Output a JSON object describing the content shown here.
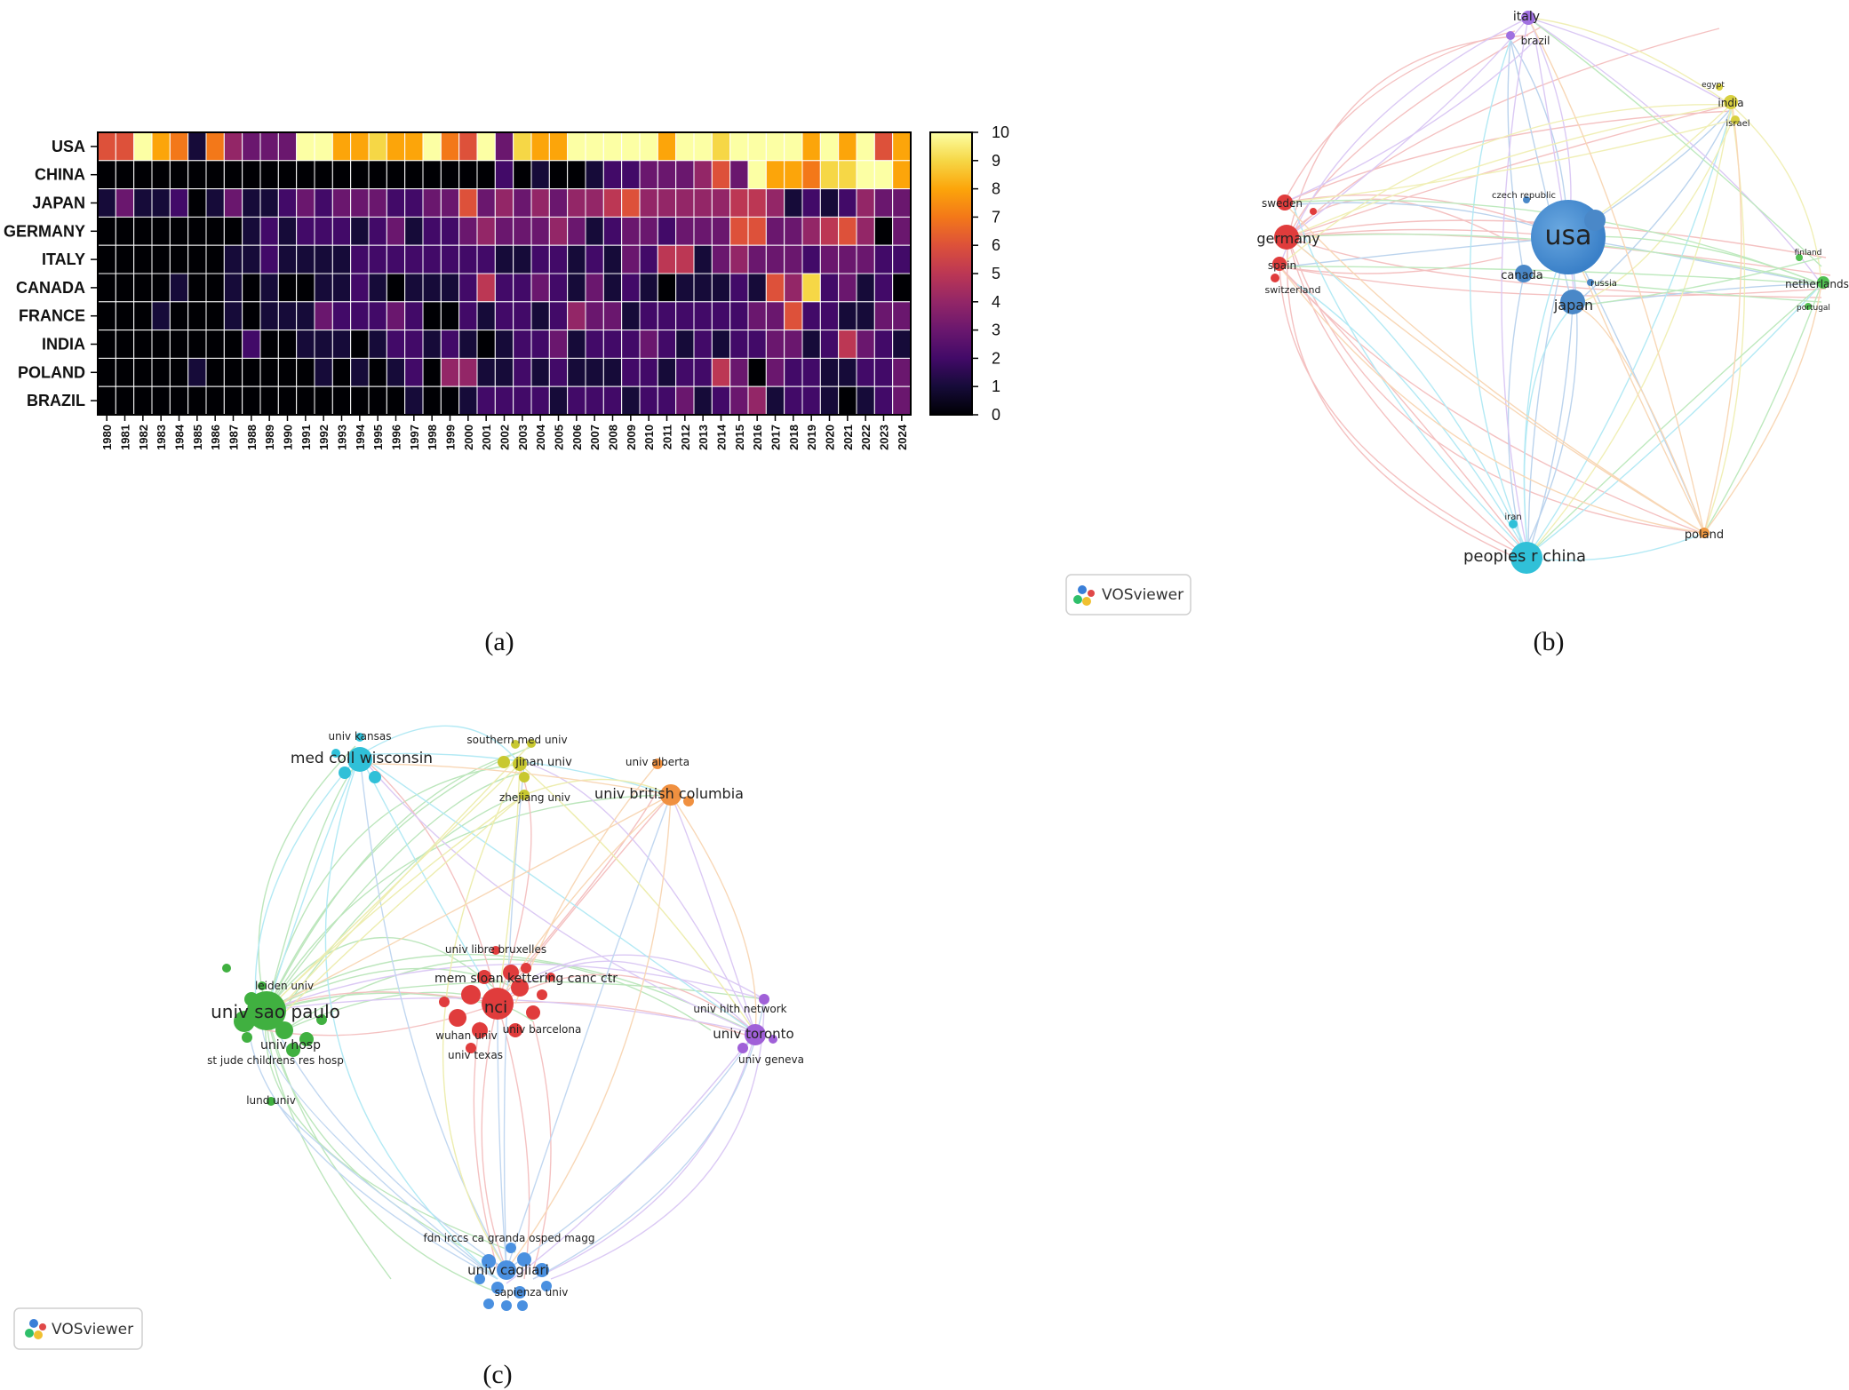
{
  "captions": {
    "a": "(a)",
    "b": "(b)",
    "c": "(c)"
  },
  "vosviewer_badge": "VOSviewer",
  "chart_data": [
    {
      "type": "heatmap",
      "panel": "a",
      "rows": [
        "USA",
        "CHINA",
        "JAPAN",
        "GERMANY",
        "ITALY",
        "CANADA",
        "FRANCE",
        "INDIA",
        "POLAND",
        "BRAZIL"
      ],
      "columns": [
        "1980",
        "1981",
        "1982",
        "1983",
        "1984",
        "1985",
        "1986",
        "1987",
        "1988",
        "1989",
        "1990",
        "1991",
        "1992",
        "1993",
        "1994",
        "1995",
        "1996",
        "1997",
        "1998",
        "1999",
        "2000",
        "2001",
        "2002",
        "2003",
        "2004",
        "2005",
        "2006",
        "2007",
        "2008",
        "2009",
        "2010",
        "2011",
        "2012",
        "2013",
        "2014",
        "2015",
        "2016",
        "2017",
        "2018",
        "2019",
        "2020",
        "2021",
        "2022",
        "2023",
        "2024"
      ],
      "values": [
        [
          6,
          6,
          10,
          8,
          7,
          1,
          7,
          4,
          3,
          3,
          3,
          10,
          10,
          8,
          8,
          9,
          8,
          8,
          10,
          7,
          6,
          10,
          3,
          9,
          8,
          8,
          10,
          10,
          10,
          10,
          10,
          8,
          10,
          10,
          9,
          10,
          10,
          10,
          10,
          8,
          10,
          8,
          10,
          6,
          8
        ],
        [
          0,
          0,
          0,
          0,
          0,
          0,
          0,
          0,
          0,
          0,
          0,
          0,
          0,
          0,
          0,
          0,
          0,
          0,
          0,
          0,
          0,
          0,
          2,
          0,
          1,
          0,
          0,
          1,
          2,
          2,
          3,
          3,
          3,
          4,
          6,
          3,
          10,
          8,
          8,
          7,
          9,
          9,
          10,
          10,
          8
        ],
        [
          1,
          3,
          1,
          1,
          2,
          0,
          1,
          3,
          1,
          1,
          2,
          3,
          2,
          3,
          3,
          3,
          2,
          2,
          3,
          3,
          6,
          3,
          4,
          3,
          4,
          3,
          4,
          4,
          5,
          6,
          4,
          4,
          4,
          4,
          4,
          5,
          5,
          4,
          1,
          2,
          1,
          2,
          4,
          3,
          3
        ],
        [
          0,
          0,
          0,
          0,
          0,
          0,
          0,
          0,
          1,
          2,
          1,
          2,
          2,
          2,
          1,
          2,
          3,
          1,
          2,
          2,
          3,
          4,
          3,
          3,
          3,
          4,
          3,
          1,
          2,
          3,
          3,
          2,
          3,
          3,
          3,
          6,
          6,
          3,
          3,
          4,
          5,
          6,
          4,
          0,
          3
        ],
        [
          0,
          0,
          0,
          0,
          0,
          0,
          0,
          1,
          1,
          2,
          1,
          1,
          1,
          1,
          2,
          2,
          2,
          2,
          2,
          2,
          2,
          2,
          1,
          1,
          2,
          2,
          1,
          2,
          1,
          3,
          2,
          5,
          5,
          1,
          3,
          4,
          3,
          3,
          3,
          2,
          3,
          3,
          3,
          2,
          2
        ],
        [
          0,
          0,
          0,
          0,
          1,
          0,
          0,
          1,
          0,
          1,
          0,
          0,
          1,
          1,
          2,
          1,
          0,
          1,
          1,
          1,
          2,
          5,
          2,
          2,
          3,
          2,
          1,
          3,
          1,
          2,
          1,
          0,
          1,
          1,
          1,
          2,
          1,
          6,
          4,
          9,
          2,
          3,
          1,
          2,
          0
        ],
        [
          0,
          0,
          0,
          1,
          0,
          0,
          0,
          1,
          0,
          1,
          1,
          1,
          3,
          2,
          2,
          2,
          3,
          2,
          0,
          0,
          2,
          1,
          2,
          2,
          1,
          2,
          4,
          3,
          3,
          1,
          2,
          2,
          2,
          2,
          2,
          2,
          3,
          3,
          6,
          2,
          2,
          1,
          1,
          3,
          3
        ],
        [
          0,
          0,
          0,
          0,
          0,
          0,
          0,
          0,
          2,
          0,
          0,
          1,
          1,
          1,
          0,
          1,
          2,
          2,
          1,
          2,
          1,
          0,
          1,
          2,
          2,
          3,
          1,
          2,
          2,
          2,
          3,
          2,
          1,
          2,
          1,
          2,
          2,
          3,
          3,
          1,
          2,
          5,
          3,
          2,
          1
        ],
        [
          0,
          0,
          0,
          0,
          0,
          1,
          0,
          0,
          0,
          0,
          0,
          0,
          1,
          0,
          1,
          0,
          1,
          2,
          0,
          4,
          4,
          1,
          1,
          2,
          1,
          2,
          1,
          1,
          1,
          2,
          2,
          1,
          2,
          2,
          5,
          3,
          0,
          3,
          2,
          2,
          1,
          1,
          2,
          2,
          3
        ],
        [
          0,
          0,
          0,
          0,
          0,
          0,
          0,
          0,
          0,
          0,
          0,
          0,
          0,
          0,
          0,
          0,
          0,
          1,
          0,
          0,
          1,
          2,
          2,
          2,
          2,
          1,
          2,
          2,
          2,
          1,
          2,
          2,
          3,
          1,
          2,
          3,
          4,
          1,
          2,
          2,
          1,
          0,
          1,
          2,
          3
        ]
      ],
      "colorbar": {
        "min": 0,
        "max": 10,
        "ticks": [
          0,
          1,
          2,
          3,
          4,
          5,
          6,
          7,
          8,
          9,
          10
        ],
        "colormap": "inferno"
      }
    },
    {
      "type": "network",
      "panel": "b",
      "nodes": [
        {
          "id": "usa",
          "label": "usa",
          "color": "#4a90d0",
          "size": "very large"
        },
        {
          "id": "germany",
          "label": "germany",
          "color": "#e03c3c",
          "size": "medium"
        },
        {
          "id": "sweden",
          "label": "sweden",
          "color": "#e03c3c",
          "size": "small"
        },
        {
          "id": "spain",
          "label": "spain",
          "color": "#e03c3c",
          "size": "small"
        },
        {
          "id": "switzerland",
          "label": "switzerland",
          "color": "#e03c3c",
          "size": "small"
        },
        {
          "id": "japan",
          "label": "japan",
          "color": "#4a90d0",
          "size": "medium"
        },
        {
          "id": "canada",
          "label": "canada",
          "color": "#4a90d0",
          "size": "small"
        },
        {
          "id": "czech",
          "label": "czech republic",
          "color": "#4a90d0",
          "size": "small"
        },
        {
          "id": "russia",
          "label": "russia",
          "color": "#4a90d0",
          "size": "small"
        },
        {
          "id": "china",
          "label": "peoples r china",
          "color": "#3cc8e0",
          "size": "large"
        },
        {
          "id": "iran",
          "label": "iran",
          "color": "#3cc8e0",
          "size": "small"
        },
        {
          "id": "italy",
          "label": "italy",
          "color": "#a070e0",
          "size": "small"
        },
        {
          "id": "brazil",
          "label": "brazil",
          "color": "#a070e0",
          "size": "small"
        },
        {
          "id": "india",
          "label": "india",
          "color": "#d8d040",
          "size": "small"
        },
        {
          "id": "egypt",
          "label": "egypt",
          "color": "#d8d040",
          "size": "small"
        },
        {
          "id": "israel",
          "label": "israel",
          "color": "#d8d040",
          "size": "small"
        },
        {
          "id": "netherlands",
          "label": "netherlands",
          "color": "#50c050",
          "size": "small"
        },
        {
          "id": "finland",
          "label": "finland",
          "color": "#50c050",
          "size": "small"
        },
        {
          "id": "portugal",
          "label": "portugal",
          "color": "#50c050",
          "size": "small"
        },
        {
          "id": "poland",
          "label": "poland",
          "color": "#f09840",
          "size": "small"
        }
      ]
    },
    {
      "type": "network",
      "panel": "c",
      "nodes": [
        {
          "id": "sao",
          "label": "univ sao paulo",
          "color": "#40b040",
          "size": "large"
        },
        {
          "id": "leiden",
          "label": "leiden univ",
          "color": "#40b040",
          "size": "small"
        },
        {
          "id": "hosp",
          "label": "univ hosp",
          "color": "#40b040",
          "size": "small"
        },
        {
          "id": "stjude",
          "label": "st jude childrens res hosp",
          "color": "#40b040",
          "size": "small"
        },
        {
          "id": "lund",
          "label": "lund univ",
          "color": "#40b040",
          "size": "small"
        },
        {
          "id": "nci",
          "label": "nci",
          "color": "#e03c3c",
          "size": "large"
        },
        {
          "id": "msk",
          "label": "mem sloan kettering canc ctr",
          "color": "#e03c3c",
          "size": "medium"
        },
        {
          "id": "bruxelles",
          "label": "univ libre bruxelles",
          "color": "#e03c3c",
          "size": "small"
        },
        {
          "id": "wuhan",
          "label": "wuhan univ",
          "color": "#e03c3c",
          "size": "small"
        },
        {
          "id": "barcelona",
          "label": "univ barcelona",
          "color": "#e03c3c",
          "size": "small"
        },
        {
          "id": "texas",
          "label": "univ texas",
          "color": "#e03c3c",
          "size": "small"
        },
        {
          "id": "wisconsin",
          "label": "med coll wisconsin",
          "color": "#30c0d8",
          "size": "medium"
        },
        {
          "id": "kansas",
          "label": "univ kansas",
          "color": "#30c0d8",
          "size": "small"
        },
        {
          "id": "southern",
          "label": "southern med univ",
          "color": "#c8c830",
          "size": "small"
        },
        {
          "id": "jinan",
          "label": "jinan univ",
          "color": "#c8c830",
          "size": "small"
        },
        {
          "id": "zhejiang",
          "label": "zhejiang univ",
          "color": "#c8c830",
          "size": "small"
        },
        {
          "id": "alberta",
          "label": "univ alberta",
          "color": "#f09040",
          "size": "small"
        },
        {
          "id": "ubc",
          "label": "univ british columbia",
          "color": "#f09040",
          "size": "medium"
        },
        {
          "id": "toronto",
          "label": "univ toronto",
          "color": "#a060d8",
          "size": "medium"
        },
        {
          "id": "hlth",
          "label": "univ hlth network",
          "color": "#a060d8",
          "size": "small"
        },
        {
          "id": "geneva",
          "label": "univ geneva",
          "color": "#a060d8",
          "size": "small"
        },
        {
          "id": "fdn",
          "label": "fdn irccs ca granda osped magg",
          "color": "#4a90e0",
          "size": "small"
        },
        {
          "id": "cagliari",
          "label": "univ cagliari",
          "color": "#4a90e0",
          "size": "medium"
        },
        {
          "id": "sapienza",
          "label": "sapienza univ",
          "color": "#4a90e0",
          "size": "small"
        }
      ]
    }
  ]
}
